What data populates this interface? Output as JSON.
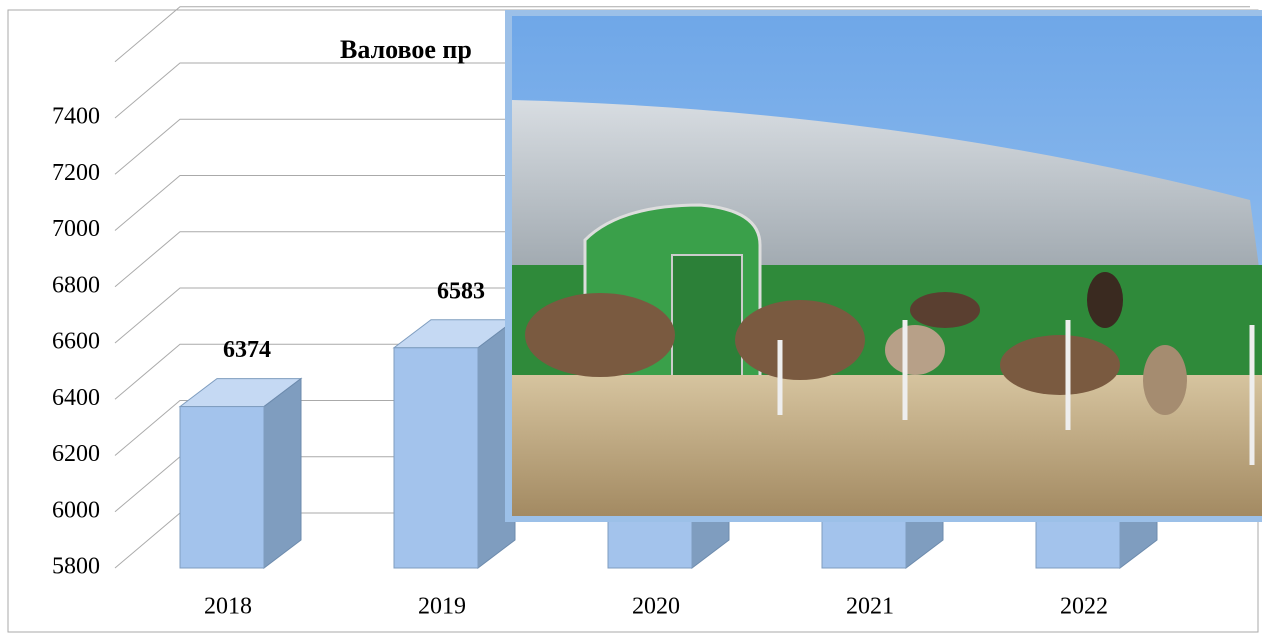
{
  "chart_data": {
    "type": "bar3d",
    "title": "Валовое пр",
    "categories": [
      "2018",
      "2019",
      "2020",
      "2021",
      "2022"
    ],
    "values": [
      6374,
      6583,
      null,
      null,
      null
    ],
    "color": "#a3c3ec",
    "ylim": [
      5800,
      7600
    ],
    "yticks": [
      5800,
      6000,
      6200,
      6400,
      6600,
      6800,
      7000,
      7200,
      7400
    ],
    "grid": true
  }
}
